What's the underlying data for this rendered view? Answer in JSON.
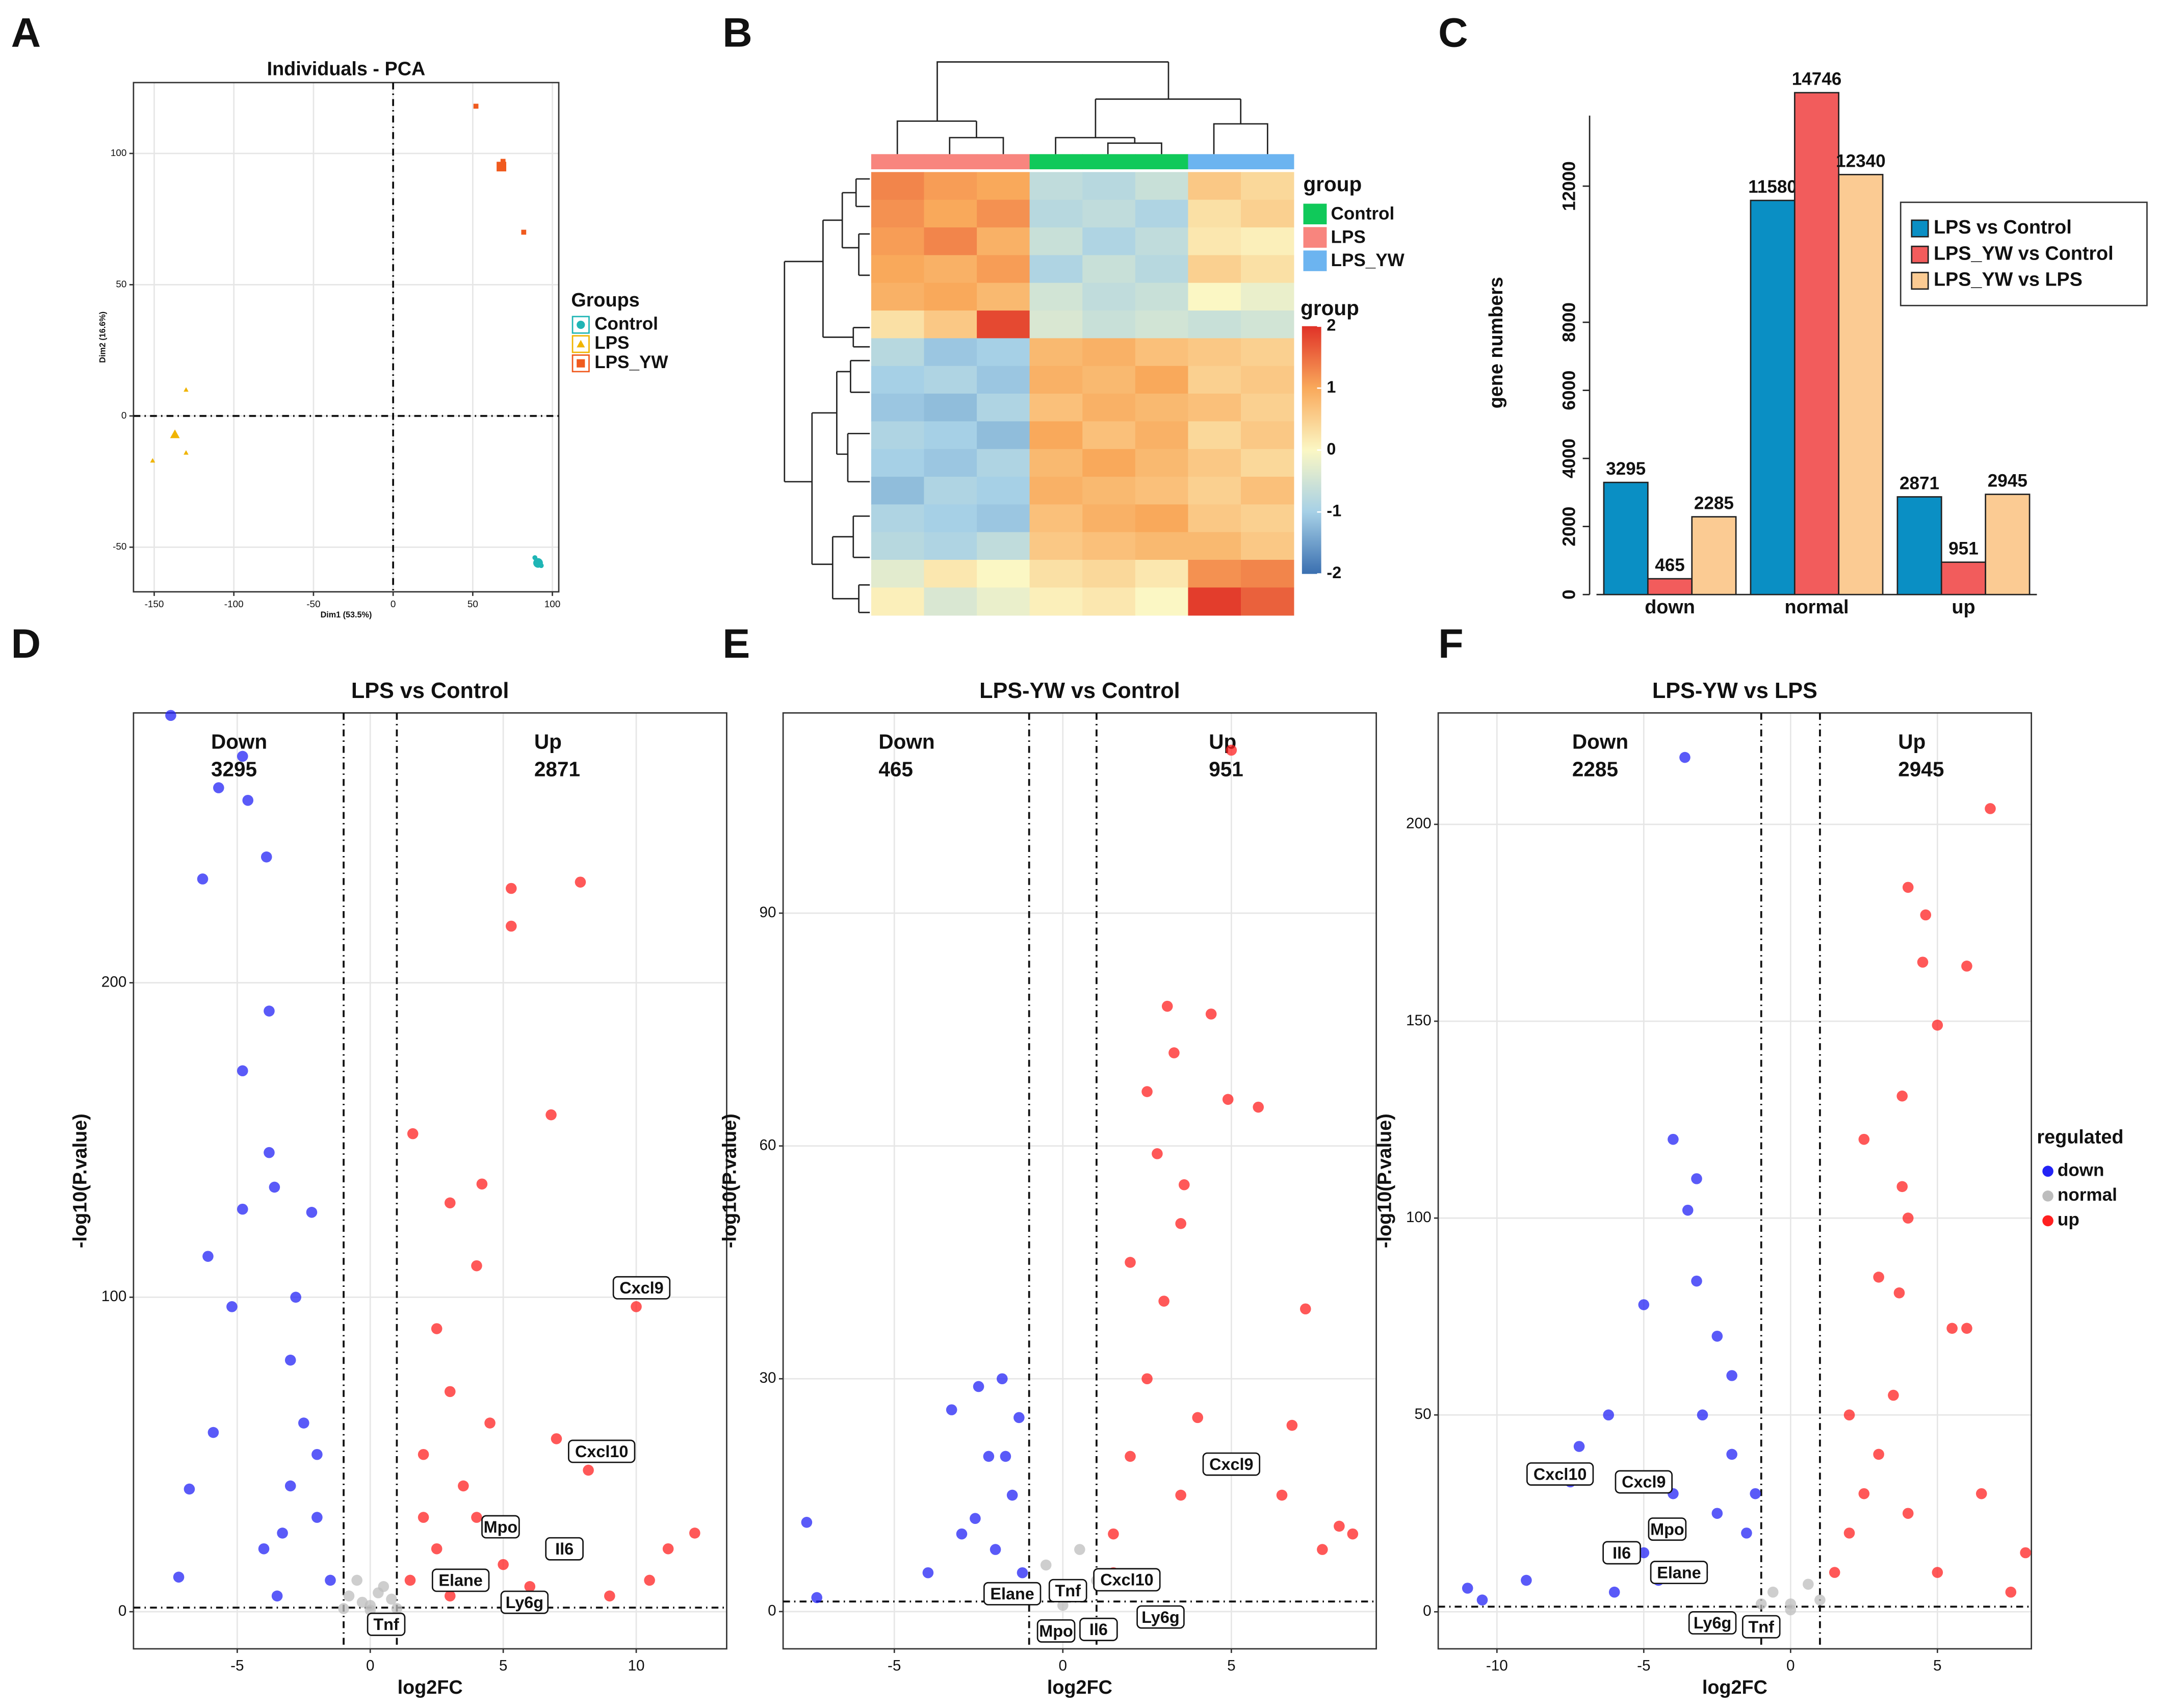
{
  "chart_data": [
    {
      "type": "scatter",
      "panel": "A",
      "title": "Individuals - PCA",
      "xlabel": "Dim1 (53.5%)",
      "ylabel": "Dim2 (16.6%)",
      "xlim": [
        -163,
        104
      ],
      "ylim": [
        -67,
        127
      ],
      "xticks": [
        -150,
        -100,
        -50,
        0,
        50,
        100
      ],
      "yticks": [
        -50,
        0,
        50,
        100
      ],
      "grid": true,
      "vlines": [
        0
      ],
      "hlines": [
        0
      ],
      "legend_title": "Groups",
      "series": [
        {
          "name": "Control",
          "color": "#1fb5b5",
          "marker": "circle",
          "x": [
            89,
            93,
            92
          ],
          "values": [
            -54,
            -57,
            -56
          ],
          "centroid": [
            91,
            -56
          ]
        },
        {
          "name": "LPS",
          "color": "#f0b400",
          "marker": "triangle",
          "x": [
            -130,
            -151,
            -130
          ],
          "values": [
            10,
            -17,
            -14
          ],
          "centroid": [
            -137,
            -7
          ]
        },
        {
          "name": "LPS_YW",
          "color": "#f05a1e",
          "marker": "square",
          "x": [
            52,
            82,
            69
          ],
          "values": [
            118,
            70,
            97
          ],
          "centroid": [
            68,
            95
          ]
        }
      ]
    },
    {
      "type": "heatmap",
      "panel": "B",
      "legend_title": "group",
      "colorbar_title": "group",
      "groups": [
        {
          "name": "Control",
          "color": "#10c95a"
        },
        {
          "name": "LPS",
          "color": "#f8857e"
        },
        {
          "name": "LPS_YW",
          "color": "#6cb4f0"
        }
      ],
      "column_groups": [
        1,
        1,
        1,
        0,
        0,
        0,
        2,
        2
      ],
      "zlim": [
        -2,
        2
      ],
      "zticks": [
        2,
        1,
        0,
        -1,
        -2
      ],
      "colorscale": [
        "#3a6fb0",
        "#a6d0e6",
        "#fbf7c4",
        "#f9a95b",
        "#e03127"
      ],
      "matrix": [
        [
          1.3,
          1.1,
          1.0,
          -0.7,
          -0.8,
          -0.6,
          0.6,
          0.4
        ],
        [
          1.2,
          1.0,
          1.2,
          -0.8,
          -0.7,
          -0.9,
          0.3,
          0.5
        ],
        [
          1.1,
          1.3,
          0.9,
          -0.6,
          -0.9,
          -0.7,
          0.2,
          0.1
        ],
        [
          1.0,
          0.9,
          1.1,
          -0.9,
          -0.6,
          -0.8,
          0.5,
          0.3
        ],
        [
          0.9,
          1.0,
          0.8,
          -0.5,
          -0.7,
          -0.6,
          0.0,
          -0.2
        ],
        [
          0.3,
          0.6,
          1.8,
          -0.4,
          -0.6,
          -0.5,
          -0.6,
          -0.5
        ],
        [
          -0.8,
          -1.1,
          -1.0,
          0.8,
          0.9,
          0.7,
          0.6,
          0.5
        ],
        [
          -1.0,
          -0.9,
          -1.1,
          0.9,
          0.8,
          1.0,
          0.5,
          0.6
        ],
        [
          -1.1,
          -1.2,
          -0.9,
          0.7,
          0.9,
          0.8,
          0.7,
          0.5
        ],
        [
          -0.9,
          -1.0,
          -1.2,
          1.0,
          0.7,
          0.9,
          0.4,
          0.6
        ],
        [
          -1.0,
          -1.1,
          -0.9,
          0.8,
          1.0,
          0.8,
          0.6,
          0.4
        ],
        [
          -1.2,
          -0.9,
          -1.0,
          0.9,
          0.8,
          0.7,
          0.5,
          0.7
        ],
        [
          -0.9,
          -1.0,
          -1.1,
          0.7,
          0.9,
          1.0,
          0.6,
          0.5
        ],
        [
          -0.8,
          -0.9,
          -0.7,
          0.6,
          0.7,
          0.8,
          0.8,
          0.6
        ],
        [
          -0.3,
          0.2,
          0.0,
          0.3,
          0.4,
          0.2,
          1.2,
          1.3
        ],
        [
          0.1,
          -0.4,
          -0.2,
          0.1,
          0.2,
          0.0,
          1.9,
          1.6
        ]
      ]
    },
    {
      "type": "bar",
      "panel": "C",
      "ylabel": "gene numbers",
      "categories": [
        "down",
        "normal",
        "up"
      ],
      "ylim": [
        0,
        14800
      ],
      "yticks": [
        0,
        2000,
        4000,
        6000,
        8000,
        12000
      ],
      "series": [
        {
          "name": "LPS vs Control",
          "color": "#0a8fc4",
          "values": [
            3295,
            11580,
            2871
          ]
        },
        {
          "name": "LPS_YW vs Control",
          "color": "#f25c5c",
          "values": [
            465,
            14746,
            951
          ]
        },
        {
          "name": "LPS_YW vs LPS",
          "color": "#fbcb93",
          "values": [
            2285,
            12340,
            2945
          ]
        }
      ]
    },
    {
      "type": "volcano",
      "panel": "D",
      "title": "LPS vs Control",
      "xlabel": "log2FC",
      "ylabel": "-log10(P.value)",
      "xlim": [
        -8.9,
        13.4
      ],
      "ylim": [
        -11.8,
        285.8
      ],
      "xticks": [
        -5,
        0,
        5,
        10
      ],
      "yticks": [
        0,
        100,
        200
      ],
      "grid": true,
      "vlines": [
        -1,
        1
      ],
      "hlines": [
        1.3
      ],
      "down_label": "Down",
      "down_count": 3295,
      "up_label": "Up",
      "up_count": 2871,
      "series": [
        {
          "color": "#2323f5",
          "x": [
            -7.5,
            -4.8,
            -5.7,
            -4.6,
            -3.9,
            -6.3,
            -3.8,
            -4.8,
            -3.8,
            -3.6,
            -6.1,
            -4.8,
            -2.2,
            -5.2,
            -5.9,
            -6.8,
            -7.2,
            -3,
            -2.5,
            -3,
            -2,
            -4,
            -1.5,
            -3.5,
            -2.8,
            -2,
            -3.3
          ],
          "values": [
            285,
            272,
            262,
            258,
            240,
            233,
            191,
            172,
            146,
            135,
            113,
            128,
            127,
            97,
            57,
            39,
            11,
            80,
            60,
            40,
            30,
            20,
            10,
            5,
            100,
            50,
            25
          ]
        },
        {
          "color": "#bdbdbd",
          "x": [
            0,
            -0.8,
            0.8,
            -0.5,
            0.5,
            0,
            -1,
            1,
            -0.3,
            0.3
          ],
          "values": [
            2,
            5,
            4,
            10,
            8,
            0.5,
            1,
            1,
            3,
            6
          ]
        },
        {
          "color": "#ff2020",
          "x": [
            5.3,
            7.9,
            5.3,
            6.8,
            1.6,
            4.2,
            3,
            4,
            2.5,
            3,
            2,
            3.5,
            4,
            2.5,
            1.5,
            10,
            8.2,
            7,
            12.2,
            11.2,
            10.5,
            9,
            5,
            6,
            3,
            2,
            4.5
          ],
          "values": [
            230,
            232,
            218,
            158,
            152,
            136,
            130,
            110,
            90,
            70,
            50,
            40,
            30,
            20,
            10,
            97,
            45,
            55,
            25,
            20,
            10,
            5,
            15,
            8,
            5,
            30,
            60
          ]
        }
      ],
      "labels": [
        {
          "text": "Cxcl9",
          "x": 10.2,
          "y": 103
        },
        {
          "text": "Cxcl10",
          "x": 8.7,
          "y": 51
        },
        {
          "text": "Mpo",
          "x": 4.9,
          "y": 27
        },
        {
          "text": "Il6",
          "x": 7.3,
          "y": 20
        },
        {
          "text": "Elane",
          "x": 3.4,
          "y": 10
        },
        {
          "text": "Ly6g",
          "x": 5.8,
          "y": 3
        },
        {
          "text": "Tnf",
          "x": 0.6,
          "y": -4
        }
      ]
    },
    {
      "type": "volcano",
      "panel": "E",
      "title": "LPS-YW vs Control",
      "xlabel": "log2FC",
      "ylabel": "-log10(P.value)",
      "xlim": [
        -8.3,
        9.3
      ],
      "ylim": [
        -4.8,
        115.8
      ],
      "xticks": [
        -5,
        0,
        5
      ],
      "yticks": [
        0,
        30,
        60,
        90
      ],
      "grid": true,
      "vlines": [
        -1,
        1
      ],
      "hlines": [
        1.3
      ],
      "down_label": "Down",
      "down_count": 465,
      "up_label": "Up",
      "up_count": 951,
      "series": [
        {
          "color": "#2323f5",
          "x": [
            -7.6,
            -7.3,
            -3.3,
            -2.5,
            -1.8,
            -2.2,
            -1.5,
            -3,
            -2,
            -4,
            -1.3,
            -2.6,
            -1.2,
            -1.7
          ],
          "values": [
            11.5,
            1.8,
            26,
            29,
            30,
            20,
            15,
            10,
            8,
            5,
            25,
            12,
            5,
            20
          ]
        },
        {
          "color": "#bdbdbd",
          "x": [
            0,
            -0.5,
            0.5,
            -1,
            1,
            0
          ],
          "values": [
            2,
            6,
            8,
            3,
            4,
            0.8
          ]
        },
        {
          "color": "#ff2020",
          "x": [
            5,
            3.1,
            4.4,
            3.3,
            2.5,
            4.9,
            5.8,
            2.8,
            3.6,
            7.2,
            6.8,
            8.2,
            8.6,
            7.7,
            2,
            3,
            2.5,
            2,
            3.5,
            1.5,
            4,
            1.5,
            6.5,
            3.5
          ],
          "values": [
            111,
            78,
            77,
            72,
            67,
            66,
            65,
            59,
            55,
            39,
            24,
            11,
            10,
            8,
            45,
            40,
            30,
            20,
            15,
            10,
            25,
            5,
            15,
            50
          ]
        }
      ],
      "labels": [
        {
          "text": "Cxcl9",
          "x": 5,
          "y": 19
        },
        {
          "text": "Elane",
          "x": -1.5,
          "y": 2.3
        },
        {
          "text": "Tnf",
          "x": 0.15,
          "y": 2.7
        },
        {
          "text": "Cxcl10",
          "x": 1.9,
          "y": 4.1
        },
        {
          "text": "Ly6g",
          "x": 2.9,
          "y": -0.7
        },
        {
          "text": "Mpo",
          "x": -0.2,
          "y": -2.5
        },
        {
          "text": "Il6",
          "x": 1.06,
          "y": -2.3
        }
      ]
    },
    {
      "type": "volcano",
      "panel": "F",
      "title": "LPS-YW vs LPS",
      "xlabel": "log2FC",
      "ylabel": "-log10(P.value)",
      "xlim": [
        -12,
        8.2
      ],
      "ylim": [
        -9.4,
        228.3
      ],
      "xticks": [
        -10,
        -5,
        0,
        5
      ],
      "yticks": [
        0,
        50,
        100,
        150,
        200
      ],
      "grid": true,
      "vlines": [
        -1,
        1
      ],
      "hlines": [
        1.3
      ],
      "down_label": "Down",
      "down_count": 2285,
      "up_label": "Up",
      "up_count": 2945,
      "legend_title": "regulated",
      "series": [
        {
          "name": "down",
          "color": "#2323f5",
          "x": [
            -3.6,
            -4,
            -3.2,
            -3.5,
            -5,
            -3.2,
            -2.5,
            -6.2,
            -7.2,
            -7.5,
            -11,
            -10.5,
            -9,
            -2,
            -3,
            -2,
            -4,
            -1.5,
            -3,
            -5,
            -6,
            -2.5,
            -1.2,
            -4.5
          ],
          "values": [
            217,
            120,
            110,
            102,
            78,
            84,
            70,
            50,
            42,
            33,
            6,
            3,
            8,
            60,
            50,
            40,
            30,
            20,
            10,
            15,
            5,
            25,
            30,
            8
          ]
        },
        {
          "name": "normal",
          "color": "#bdbdbd",
          "x": [
            0,
            -0.6,
            0.6,
            -1,
            1,
            0
          ],
          "values": [
            2,
            5,
            7,
            2,
            3,
            0.5
          ]
        },
        {
          "name": "up",
          "color": "#ff2020",
          "x": [
            6.8,
            4,
            4.6,
            4.5,
            6,
            5,
            3.8,
            2.5,
            3.8,
            4,
            3,
            3.7,
            5.5,
            6,
            2,
            3,
            2.5,
            2,
            1.5,
            4,
            6.5,
            8,
            7.5,
            3.5,
            5
          ],
          "values": [
            204,
            184,
            177,
            165,
            164,
            149,
            131,
            120,
            108,
            100,
            85,
            81,
            72,
            72,
            50,
            40,
            30,
            20,
            10,
            25,
            30,
            15,
            5,
            55,
            10
          ]
        }
      ],
      "labels": [
        {
          "text": "Cxcl10",
          "x": -7.85,
          "y": 35
        },
        {
          "text": "Cxcl9",
          "x": -5,
          "y": 33
        },
        {
          "text": "Mpo",
          "x": -4.2,
          "y": 21
        },
        {
          "text": "Il6",
          "x": -5.75,
          "y": 15
        },
        {
          "text": "Elane",
          "x": -3.8,
          "y": 10
        },
        {
          "text": "Ly6g",
          "x": -2.66,
          "y": -2.8
        },
        {
          "text": "Tnf",
          "x": -1,
          "y": -3.8
        }
      ]
    }
  ]
}
